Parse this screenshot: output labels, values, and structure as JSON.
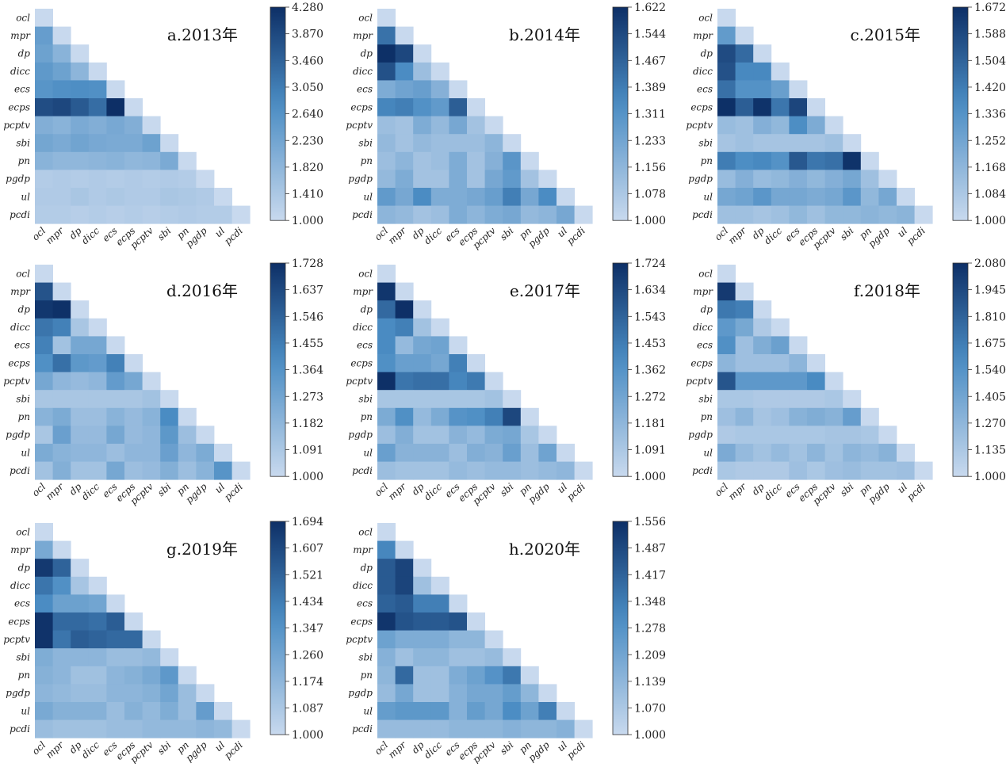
{
  "figure": {
    "colors": {
      "low": "#c8d9ee",
      "high": "#0d2f66",
      "cell_border": "none"
    }
  },
  "chart_data": [
    {
      "type": "heatmap",
      "title": "a.2013年",
      "labels": [
        "ocl",
        "mpr",
        "dp",
        "dicc",
        "ecs",
        "ecps",
        "pcptv",
        "sbi",
        "pn",
        "pgdp",
        "ul",
        "pcdi"
      ],
      "colorbar_ticks": [
        "4.280",
        "3.870",
        "3.460",
        "3.050",
        "2.640",
        "2.230",
        "1.820",
        "1.410",
        "1.000"
      ],
      "vmin": 1.0,
      "vmax": 4.28,
      "values": [
        [
          1.0
        ],
        [
          2.4,
          1.0
        ],
        [
          2.3,
          1.9,
          1.0
        ],
        [
          2.5,
          2.3,
          1.85,
          1.0
        ],
        [
          2.6,
          2.7,
          2.75,
          2.7,
          1.0
        ],
        [
          3.8,
          3.9,
          3.6,
          3.3,
          4.28,
          1.0
        ],
        [
          2.0,
          1.9,
          2.1,
          2.0,
          2.15,
          2.0,
          1.0
        ],
        [
          2.2,
          2.1,
          2.25,
          2.15,
          2.1,
          2.1,
          2.3,
          1.0
        ],
        [
          1.9,
          1.8,
          1.8,
          1.85,
          1.9,
          1.8,
          1.85,
          2.1,
          1.0
        ],
        [
          1.3,
          1.35,
          1.3,
          1.35,
          1.3,
          1.35,
          1.3,
          1.35,
          1.3,
          1.0
        ],
        [
          1.35,
          1.35,
          1.45,
          1.35,
          1.4,
          1.35,
          1.35,
          1.45,
          1.4,
          1.35,
          1.0
        ],
        [
          1.3,
          1.3,
          1.25,
          1.3,
          1.25,
          1.3,
          1.25,
          1.3,
          1.35,
          1.3,
          1.3,
          1.0
        ]
      ]
    },
    {
      "type": "heatmap",
      "title": "b.2014年",
      "labels": [
        "ocl",
        "mpr",
        "dp",
        "dicc",
        "ecs",
        "ecps",
        "pcptv",
        "sbi",
        "pn",
        "pgdp",
        "ul",
        "pcdi"
      ],
      "colorbar_ticks": [
        "1.622",
        "1.544",
        "1.467",
        "1.389",
        "1.311",
        "1.233",
        "1.156",
        "1.078",
        "1.000"
      ],
      "vmin": 1.0,
      "vmax": 1.622,
      "values": [
        [
          1.0
        ],
        [
          1.42,
          1.0
        ],
        [
          1.62,
          1.55,
          1.0
        ],
        [
          1.52,
          1.34,
          1.12,
          1.0
        ],
        [
          1.2,
          1.24,
          1.26,
          1.18,
          1.0
        ],
        [
          1.36,
          1.38,
          1.32,
          1.28,
          1.48,
          1.0
        ],
        [
          1.12,
          1.1,
          1.2,
          1.14,
          1.22,
          1.1,
          1.0
        ],
        [
          1.14,
          1.1,
          1.14,
          1.12,
          1.12,
          1.12,
          1.16,
          1.0
        ],
        [
          1.12,
          1.16,
          1.1,
          1.12,
          1.2,
          1.1,
          1.18,
          1.3,
          1.0
        ],
        [
          1.14,
          1.2,
          1.1,
          1.1,
          1.2,
          1.1,
          1.22,
          1.28,
          1.1,
          1.0
        ],
        [
          1.28,
          1.22,
          1.34,
          1.2,
          1.2,
          1.22,
          1.26,
          1.38,
          1.22,
          1.34,
          1.0
        ],
        [
          1.16,
          1.14,
          1.1,
          1.12,
          1.2,
          1.16,
          1.2,
          1.22,
          1.14,
          1.16,
          1.22,
          1.0
        ]
      ]
    },
    {
      "type": "heatmap",
      "title": "c.2015年",
      "labels": [
        "ocl",
        "mpr",
        "dp",
        "dicc",
        "ecs",
        "ecps",
        "pcptv",
        "sbi",
        "pn",
        "pgdp",
        "ul",
        "pcdi"
      ],
      "colorbar_ticks": [
        "1.672",
        "1.588",
        "1.504",
        "1.420",
        "1.336",
        "1.252",
        "1.168",
        "1.084",
        "1.000"
      ],
      "vmin": 1.0,
      "vmax": 1.672,
      "values": [
        [
          1.0
        ],
        [
          1.3,
          1.0
        ],
        [
          1.58,
          1.48,
          1.0
        ],
        [
          1.56,
          1.38,
          1.38,
          1.0
        ],
        [
          1.46,
          1.34,
          1.34,
          1.28,
          1.0
        ],
        [
          1.67,
          1.52,
          1.66,
          1.44,
          1.6,
          1.0
        ],
        [
          1.14,
          1.12,
          1.2,
          1.16,
          1.36,
          1.22,
          1.0
        ],
        [
          1.1,
          1.12,
          1.1,
          1.1,
          1.1,
          1.1,
          1.12,
          1.0
        ],
        [
          1.42,
          1.36,
          1.38,
          1.34,
          1.54,
          1.44,
          1.46,
          1.66,
          1.0
        ],
        [
          1.14,
          1.2,
          1.14,
          1.16,
          1.2,
          1.16,
          1.2,
          1.24,
          1.12,
          1.0
        ],
        [
          1.24,
          1.26,
          1.32,
          1.24,
          1.24,
          1.22,
          1.24,
          1.32,
          1.16,
          1.24,
          1.0
        ],
        [
          1.12,
          1.12,
          1.1,
          1.12,
          1.16,
          1.12,
          1.16,
          1.16,
          1.18,
          1.16,
          1.18,
          1.0
        ]
      ]
    },
    {
      "type": "heatmap",
      "title": "d.2016年",
      "labels": [
        "ocl",
        "mpr",
        "dp",
        "dicc",
        "ecs",
        "ecps",
        "pcptv",
        "sbi",
        "pn",
        "pgdp",
        "ul",
        "pcdi"
      ],
      "colorbar_ticks": [
        "1.728",
        "1.637",
        "1.546",
        "1.455",
        "1.364",
        "1.273",
        "1.182",
        "1.091",
        "1.000"
      ],
      "vmin": 1.0,
      "vmax": 1.728,
      "values": [
        [
          1.0
        ],
        [
          1.6,
          1.0
        ],
        [
          1.7,
          1.72,
          1.0
        ],
        [
          1.48,
          1.44,
          1.1,
          1.0
        ],
        [
          1.44,
          1.12,
          1.26,
          1.26,
          1.0
        ],
        [
          1.38,
          1.5,
          1.34,
          1.32,
          1.44,
          1.0
        ],
        [
          1.26,
          1.18,
          1.16,
          1.18,
          1.32,
          1.26,
          1.0
        ],
        [
          1.1,
          1.1,
          1.1,
          1.1,
          1.1,
          1.1,
          1.12,
          1.0
        ],
        [
          1.2,
          1.24,
          1.14,
          1.14,
          1.2,
          1.16,
          1.2,
          1.4,
          1.0
        ],
        [
          1.1,
          1.3,
          1.16,
          1.16,
          1.26,
          1.16,
          1.18,
          1.34,
          1.14,
          1.0
        ],
        [
          1.24,
          1.2,
          1.18,
          1.18,
          1.14,
          1.18,
          1.18,
          1.3,
          1.18,
          1.24,
          1.0
        ],
        [
          1.12,
          1.22,
          1.12,
          1.12,
          1.26,
          1.14,
          1.16,
          1.22,
          1.14,
          1.2,
          1.36,
          1.0
        ]
      ]
    },
    {
      "type": "heatmap",
      "title": "e.2017年",
      "labels": [
        "ocl",
        "mpr",
        "dp",
        "dicc",
        "ecs",
        "ecps",
        "pcptv",
        "sbi",
        "pn",
        "pgdp",
        "ul",
        "pcdi"
      ],
      "colorbar_ticks": [
        "1.724",
        "1.634",
        "1.543",
        "1.453",
        "1.362",
        "1.272",
        "1.181",
        "1.091",
        "1.000"
      ],
      "vmin": 1.0,
      "vmax": 1.724,
      "values": [
        [
          1.0
        ],
        [
          1.7,
          1.0
        ],
        [
          1.52,
          1.72,
          1.0
        ],
        [
          1.4,
          1.44,
          1.12,
          1.0
        ],
        [
          1.4,
          1.16,
          1.26,
          1.28,
          1.0
        ],
        [
          1.38,
          1.3,
          1.3,
          1.26,
          1.44,
          1.0
        ],
        [
          1.72,
          1.48,
          1.5,
          1.5,
          1.42,
          1.46,
          1.0
        ],
        [
          1.1,
          1.1,
          1.1,
          1.1,
          1.1,
          1.1,
          1.12,
          1.0
        ],
        [
          1.24,
          1.38,
          1.16,
          1.24,
          1.36,
          1.38,
          1.44,
          1.64,
          1.0
        ],
        [
          1.14,
          1.22,
          1.12,
          1.12,
          1.2,
          1.16,
          1.24,
          1.26,
          1.1,
          1.0
        ],
        [
          1.3,
          1.2,
          1.2,
          1.2,
          1.14,
          1.22,
          1.2,
          1.3,
          1.14,
          1.28,
          1.0
        ],
        [
          1.14,
          1.12,
          1.12,
          1.12,
          1.16,
          1.14,
          1.16,
          1.16,
          1.14,
          1.16,
          1.18,
          1.0
        ]
      ]
    },
    {
      "type": "heatmap",
      "title": "f.2018年",
      "labels": [
        "ocl",
        "mpr",
        "dp",
        "dicc",
        "ecs",
        "ecps",
        "pcptv",
        "sbi",
        "pn",
        "pgdp",
        "ul",
        "pcdi"
      ],
      "colorbar_ticks": [
        "2.080",
        "1.945",
        "1.810",
        "1.675",
        "1.540",
        "1.405",
        "1.270",
        "1.135",
        "1.000"
      ],
      "vmin": 1.0,
      "vmax": 2.08,
      "values": [
        [
          1.0
        ],
        [
          2.02,
          1.0
        ],
        [
          1.7,
          1.66,
          1.0
        ],
        [
          1.5,
          1.38,
          1.12,
          1.0
        ],
        [
          1.56,
          1.2,
          1.34,
          1.44,
          1.0
        ],
        [
          1.28,
          1.2,
          1.2,
          1.2,
          1.28,
          1.0
        ],
        [
          1.88,
          1.5,
          1.5,
          1.5,
          1.5,
          1.6,
          1.0
        ],
        [
          1.14,
          1.14,
          1.12,
          1.12,
          1.12,
          1.12,
          1.14,
          1.0
        ],
        [
          1.2,
          1.28,
          1.16,
          1.2,
          1.3,
          1.34,
          1.3,
          1.46,
          1.0
        ],
        [
          1.12,
          1.14,
          1.14,
          1.14,
          1.14,
          1.14,
          1.16,
          1.16,
          1.14,
          1.0
        ],
        [
          1.36,
          1.24,
          1.18,
          1.24,
          1.18,
          1.28,
          1.18,
          1.28,
          1.24,
          1.3,
          1.0
        ],
        [
          1.14,
          1.12,
          1.12,
          1.12,
          1.2,
          1.14,
          1.2,
          1.22,
          1.18,
          1.18,
          1.2,
          1.0
        ]
      ]
    },
    {
      "type": "heatmap",
      "title": "g.2019年",
      "labels": [
        "ocl",
        "mpr",
        "dp",
        "dicc",
        "ecs",
        "ecps",
        "pcptv",
        "sbi",
        "pn",
        "pgdp",
        "ul",
        "pcdi"
      ],
      "colorbar_ticks": [
        "1.694",
        "1.607",
        "1.521",
        "1.434",
        "1.347",
        "1.260",
        "1.174",
        "1.087",
        "1.000"
      ],
      "vmin": 1.0,
      "vmax": 1.694,
      "values": [
        [
          1.0
        ],
        [
          1.24,
          1.0
        ],
        [
          1.66,
          1.52,
          1.0
        ],
        [
          1.46,
          1.36,
          1.1,
          1.0
        ],
        [
          1.38,
          1.28,
          1.28,
          1.26,
          1.0
        ],
        [
          1.68,
          1.5,
          1.5,
          1.48,
          1.54,
          1.0
        ],
        [
          1.68,
          1.46,
          1.54,
          1.52,
          1.5,
          1.5,
          1.0
        ],
        [
          1.22,
          1.18,
          1.18,
          1.18,
          1.14,
          1.14,
          1.16,
          1.0
        ],
        [
          1.2,
          1.18,
          1.12,
          1.12,
          1.18,
          1.2,
          1.24,
          1.32,
          1.0
        ],
        [
          1.18,
          1.16,
          1.14,
          1.14,
          1.18,
          1.18,
          1.2,
          1.26,
          1.14,
          1.0
        ],
        [
          1.24,
          1.2,
          1.2,
          1.2,
          1.14,
          1.2,
          1.16,
          1.22,
          1.14,
          1.3,
          1.0
        ],
        [
          1.14,
          1.12,
          1.12,
          1.12,
          1.14,
          1.14,
          1.16,
          1.16,
          1.16,
          1.18,
          1.16,
          1.0
        ]
      ]
    },
    {
      "type": "heatmap",
      "title": "h.2020年",
      "labels": [
        "ocl",
        "mpr",
        "dp",
        "dicc",
        "ecs",
        "ecps",
        "pcptv",
        "sbi",
        "pn",
        "pgdp",
        "ul",
        "pcdi"
      ],
      "colorbar_ticks": [
        "1.556",
        "1.487",
        "1.417",
        "1.348",
        "1.278",
        "1.209",
        "1.139",
        "1.070",
        "1.000"
      ],
      "vmin": 1.0,
      "vmax": 1.556,
      "values": [
        [
          1.0
        ],
        [
          1.32,
          1.0
        ],
        [
          1.44,
          1.5,
          1.0
        ],
        [
          1.44,
          1.5,
          1.1,
          1.0
        ],
        [
          1.42,
          1.44,
          1.34,
          1.34,
          1.0
        ],
        [
          1.54,
          1.46,
          1.44,
          1.44,
          1.46,
          1.0
        ],
        [
          1.22,
          1.18,
          1.18,
          1.18,
          1.14,
          1.14,
          1.0
        ],
        [
          1.16,
          1.1,
          1.14,
          1.14,
          1.1,
          1.1,
          1.12,
          1.0
        ],
        [
          1.14,
          1.4,
          1.1,
          1.1,
          1.18,
          1.22,
          1.28,
          1.36,
          1.0
        ],
        [
          1.12,
          1.2,
          1.1,
          1.1,
          1.16,
          1.2,
          1.2,
          1.24,
          1.14,
          1.0
        ],
        [
          1.24,
          1.26,
          1.26,
          1.26,
          1.16,
          1.24,
          1.2,
          1.3,
          1.22,
          1.34,
          1.0
        ],
        [
          1.12,
          1.12,
          1.12,
          1.12,
          1.14,
          1.14,
          1.14,
          1.16,
          1.14,
          1.14,
          1.16,
          1.0
        ]
      ]
    }
  ]
}
